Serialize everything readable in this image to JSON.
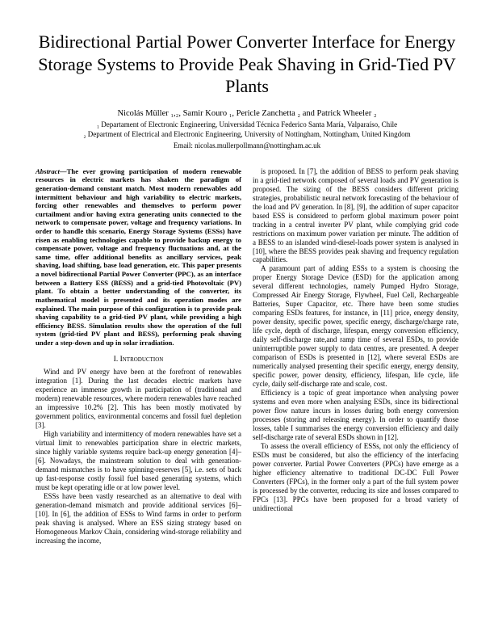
{
  "title": "Bidirectional Partial Power Converter Interface for Energy Storage Systems to Provide Peak Shaving in Grid-Tied PV Plants",
  "authors": "Nicolás Müller ₁,₂, Samir Kouro ₁, Pericle Zanchetta ₂ and Patrick Wheeler ₂",
  "affil1": "₁ Departament of Electronic Engineering, Universidad Técnica Federico Santa María, Valparaíso, Chile",
  "affil2": "₂ Department of Electrical and Electronic Engineering, University of Nottingham, Nottingham, United Kingdom",
  "email": "Email: nicolas.mullerpollmann@nottingham.ac.uk",
  "abstract_label": "Abstract—",
  "abstract": "The ever growing participation of modern renewable resources in electric markets has shaken the paradigm of generation-demand constant match. Most modern renewables add intermittent behaviour and high variability to electric markets, forcing other renewables and themselves to perform power curtailment and/or having extra generating units connected to the network to compensate power, voltage and frequency variations. In order to handle this scenario, Energy Storage Systems (ESSs) have risen as enabling technologies capable to provide backup energy to compensate power, voltage and frequency fluctuations and, at the same time, offer additional benefits as ancillary services, peak shaving, load shifting, base load generation, etc. This paper presents a novel bidirectional Partial Power Converter (PPC), as an interface between a Battery ESS (BESS) and a grid-tied Photovoltaic (PV) plant. To obtain a better understanding of the converter, its mathematical model is presented and its operation modes are explained. The main purpose of this configuration is to provide peak shaving capability to a grid-tied PV plant, while providing a high efficiency BESS. Simulation results show the operation of the full system (grid-tied PV plant and BESS), performing peak shaving under a step-down and up in solar irradiation.",
  "section1": "I. Introduction",
  "p1": "Wind and PV energy have been at the forefront of renewables integration [1]. During the last decades electric markets have experience an immense growth in participation of (traditional and modern) renewable resources, where modern renewables have reached an impressive 10.2% [2]. This has been mostly motivated by government politics, environmental concerns and fossil fuel depletion [3].",
  "p2": "High variability and intermittency of modern renewables have set a virtual limit to renewables participation share in electric markets, since highly variable systems require back-up energy generation [4]–[6]. Nowadays, the mainstream solution to deal with generation-demand mismatches is to have spinning-reserves [5], i.e. sets of back up fast-response costly fossil fuel based generating systems, which must be kept operating idle or at low power level.",
  "p3": "ESSs have been vastly researched as an alternative to deal with generation-demand mismatch and provide additional services [6]–[10]. In [6], the addition of ESSs to Wind farms in order to perform peak shaving is analysed. Where an ESS sizing strategy based on Homogeneous Markov Chain, considering wind-storage reliability and increasing the income,",
  "p4": "is proposed. In [7], the addition of BESS to perform peak shaving in a grid-tied network composed of several loads and PV generation is proposed. The sizing of the BESS considers different pricing strategies, probabilistic neural network forecasting of the behaviour of the load and PV generation. In [8], [9], the addition of super capacitor based ESS is considered to perform global maximum power point tracking in a central inverter PV plant, while complying grid code restrictions on maximum power variation per minute. The addition of a BESS to an islanded wind-diesel-loads power system is analysed in [10], where the BESS provides peak shaving and frequency regulation capabilities.",
  "p5": "A paramount part of adding ESSs to a system is choosing the proper Energy Storage Device (ESD) for the application among several different technologies, namely Pumped Hydro Storage, Compressed Air Energy Storage, Flywheel, Fuel Cell, Rechargeable Batteries, Super Capacitor, etc. There have been some studies comparing ESDs features, for instance, in [11] price, energy density, power density, specific power, specific energy, discharge/charge rate, life cycle, depth of discharge, lifespan, energy conversion efficiency, daily self-discharge rate,and ramp time of several ESDs, to provide uninterruptible power supply to data centres, are presented. A deeper comparison of ESDs is presented in [12], where several ESDs are numerically analysed presenting their specific energy, energy density, specific power, power density, efficiency, lifespan, life cycle, life cycle, daily self-discharge rate and scale, cost.",
  "p6": "Efficiency is a topic of great importance when analysing power systems and even more when analysing ESDs, since its bidirectional power flow nature incurs in losses during both energy conversion processes (storing and releasing energy). In order to quantify those losses, table I summarises the energy conversion efficiency and daily self-discharge rate of several ESDs shown in [12].",
  "p7": "To assess the overall efficiency of ESSs, not only the efficiency of ESDs must be considered, but also the efficiency of the interfacing power converter. Partial Power Converters (PPCs) have emerge as a higher efficiency alternative to traditional DC-DC Full Power Converters (FPCs), in the former only a part of the full system power is processed by the converter, reducing its size and losses compared to FPCs [13]. PPCs have been proposed for a broad variety of unidirectional"
}
